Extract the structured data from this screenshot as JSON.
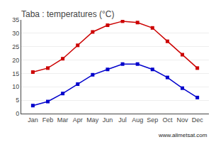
{
  "chart_data": {
    "type": "line",
    "title": "Taba : temperatures (°C)",
    "categories": [
      "Jan",
      "Feb",
      "Mar",
      "Apr",
      "May",
      "Jun",
      "Jul",
      "Aug",
      "Sep",
      "Oct",
      "Nov",
      "Dec"
    ],
    "series": [
      {
        "color": "#cc0000",
        "marker": "square",
        "values": [
          15.5,
          17.0,
          20.5,
          25.5,
          30.5,
          33.0,
          34.5,
          34.0,
          32.0,
          27.0,
          22.0,
          17.0
        ]
      },
      {
        "color": "#0000cc",
        "marker": "square",
        "values": [
          3.0,
          4.5,
          7.5,
          11.0,
          14.5,
          16.5,
          18.5,
          18.5,
          16.5,
          13.5,
          9.5,
          6.0
        ]
      }
    ],
    "ylim": [
      0,
      35
    ],
    "yticks": [
      0,
      5,
      10,
      15,
      20,
      25,
      30,
      35
    ],
    "grid": true,
    "annotations": [
      "www.allmetsat.com"
    ]
  }
}
